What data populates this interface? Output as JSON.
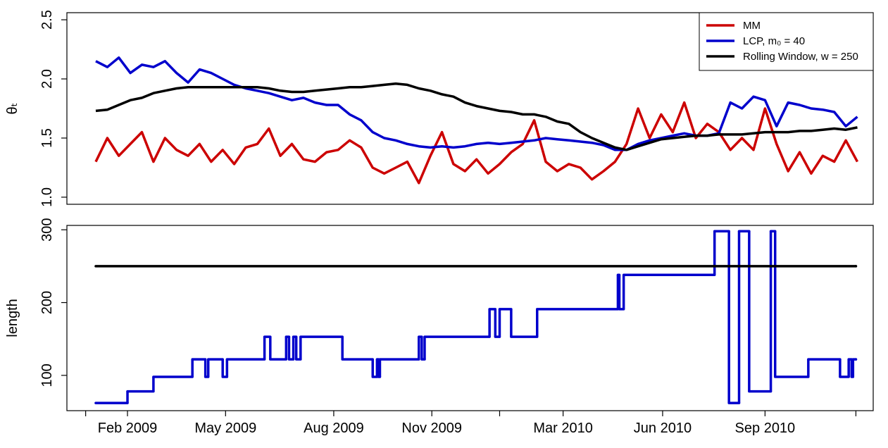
{
  "chart_data": [
    {
      "type": "line",
      "ylabel": "θₜ",
      "legend": "topright",
      "xlim": [
        -20,
        539
      ],
      "ylim": [
        0.94,
        2.56
      ],
      "yticks": [
        {
          "value": 1,
          "label": "1.0"
        },
        1.5,
        {
          "value": 2,
          "label": "2.0"
        },
        2.5
      ],
      "x": [
        0,
        8,
        16,
        24,
        32,
        40,
        48,
        56,
        64,
        72,
        80,
        88,
        96,
        104,
        112,
        120,
        128,
        136,
        144,
        152,
        160,
        168,
        176,
        184,
        192,
        200,
        208,
        216,
        224,
        232,
        240,
        248,
        256,
        264,
        272,
        280,
        288,
        296,
        304,
        312,
        320,
        328,
        336,
        344,
        352,
        360,
        368,
        376,
        384,
        392,
        400,
        408,
        416,
        424,
        432,
        440,
        448,
        456,
        464,
        472,
        480,
        488,
        496,
        504,
        512,
        520,
        528
      ],
      "series": [
        {
          "name": "MM",
          "color": "#cc0000",
          "values": [
            1.3,
            1.5,
            1.35,
            1.45,
            1.55,
            1.3,
            1.5,
            1.4,
            1.35,
            1.45,
            1.3,
            1.4,
            1.28,
            1.42,
            1.45,
            1.58,
            1.35,
            1.45,
            1.32,
            1.3,
            1.38,
            1.4,
            1.48,
            1.42,
            1.25,
            1.2,
            1.25,
            1.3,
            1.12,
            1.35,
            1.55,
            1.28,
            1.22,
            1.32,
            1.2,
            1.28,
            1.38,
            1.45,
            1.65,
            1.3,
            1.22,
            1.28,
            1.25,
            1.15,
            1.22,
            1.3,
            1.45,
            1.75,
            1.5,
            1.7,
            1.55,
            1.8,
            1.5,
            1.62,
            1.55,
            1.4,
            1.5,
            1.4,
            1.75,
            1.45,
            1.22,
            1.38,
            1.2,
            1.35,
            1.3,
            1.48,
            1.3
          ]
        },
        {
          "name": "LCP, m₀ = 40",
          "color": "#0000cc",
          "values": [
            2.15,
            2.1,
            2.18,
            2.05,
            2.12,
            2.1,
            2.15,
            2.05,
            1.97,
            2.08,
            2.05,
            2.0,
            1.95,
            1.92,
            1.9,
            1.88,
            1.85,
            1.82,
            1.84,
            1.8,
            1.78,
            1.78,
            1.7,
            1.65,
            1.55,
            1.5,
            1.48,
            1.45,
            1.43,
            1.42,
            1.43,
            1.42,
            1.43,
            1.45,
            1.46,
            1.45,
            1.46,
            1.47,
            1.48,
            1.5,
            1.49,
            1.48,
            1.47,
            1.46,
            1.44,
            1.4,
            1.4,
            1.45,
            1.48,
            1.5,
            1.52,
            1.54,
            1.52,
            1.52,
            1.54,
            1.8,
            1.75,
            1.85,
            1.82,
            1.6,
            1.8,
            1.78,
            1.75,
            1.74,
            1.72,
            1.6,
            1.68
          ]
        },
        {
          "name": "Rolling Window, w = 250",
          "color": "#000000",
          "values": [
            1.73,
            1.74,
            1.78,
            1.82,
            1.84,
            1.88,
            1.9,
            1.92,
            1.93,
            1.93,
            1.93,
            1.93,
            1.93,
            1.93,
            1.93,
            1.92,
            1.9,
            1.89,
            1.89,
            1.9,
            1.91,
            1.92,
            1.93,
            1.93,
            1.94,
            1.95,
            1.96,
            1.95,
            1.92,
            1.9,
            1.87,
            1.85,
            1.8,
            1.77,
            1.75,
            1.73,
            1.72,
            1.7,
            1.7,
            1.68,
            1.64,
            1.62,
            1.55,
            1.5,
            1.46,
            1.42,
            1.4,
            1.43,
            1.46,
            1.49,
            1.5,
            1.51,
            1.52,
            1.52,
            1.53,
            1.53,
            1.53,
            1.54,
            1.55,
            1.55,
            1.55,
            1.56,
            1.56,
            1.57,
            1.58,
            1.57,
            1.59
          ]
        }
      ]
    },
    {
      "type": "step",
      "ylabel": "length",
      "xlim": [
        -20,
        539
      ],
      "ylim": [
        51.5,
        306
      ],
      "yticks": [
        100,
        200,
        300
      ],
      "xticks": [
        {
          "value": -7,
          "label": null
        },
        {
          "value": 22,
          "label": "Feb 2009"
        },
        {
          "value": 90,
          "label": "May 2009"
        },
        {
          "value": 165,
          "label": "Aug 2009"
        },
        {
          "value": 233,
          "label": "Nov 2009"
        },
        {
          "value": 280,
          "label": null
        },
        {
          "value": 324,
          "label": "Mar 2010"
        },
        {
          "value": 393,
          "label": "Jun 2010"
        },
        {
          "value": 464,
          "label": "Sep 2010"
        },
        {
          "value": 527,
          "label": null
        }
      ],
      "series": [
        {
          "color": "#0000cc",
          "x": [
            0,
            22,
            40,
            67,
            76,
            78,
            88,
            91,
            117,
            121,
            132,
            134,
            137,
            139,
            142,
            171,
            192,
            195,
            196,
            197,
            224,
            226,
            228,
            273,
            277,
            280,
            288,
            306,
            362,
            363,
            366,
            429,
            439,
            446,
            453,
            468,
            471,
            494,
            516,
            522,
            524,
            525,
            527
          ],
          "values": [
            62,
            78,
            98,
            122,
            98,
            122,
            98,
            122,
            153,
            122,
            153,
            122,
            153,
            122,
            153,
            122,
            98,
            122,
            98,
            122,
            153,
            122,
            153,
            191,
            153,
            191,
            153,
            191,
            238,
            191,
            238,
            298,
            62,
            298,
            78,
            298,
            98,
            122,
            98,
            122,
            98,
            122,
            122
          ]
        },
        {
          "color": "#000000",
          "x": [
            0,
            527
          ],
          "values": [
            250,
            250
          ]
        }
      ]
    }
  ]
}
